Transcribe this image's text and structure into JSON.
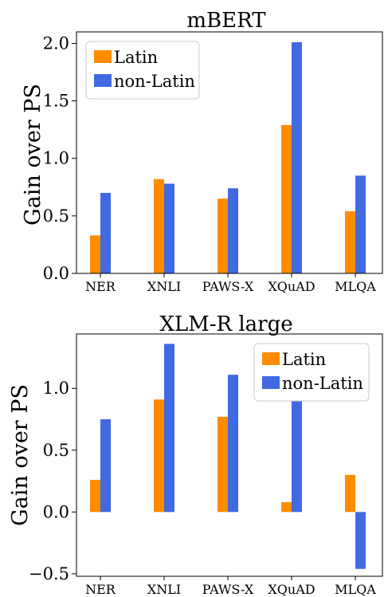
{
  "colors": {
    "latin": "#ff8c00",
    "non_latin": "#4169e1"
  },
  "chart_data": [
    {
      "type": "bar",
      "title": "mBERT",
      "ylabel": "Gain over PS",
      "xlabel": "",
      "categories": [
        "NER",
        "XNLI",
        "PAWS-X",
        "XQuAD",
        "MLQA"
      ],
      "series": [
        {
          "name": "Latin",
          "values": [
            0.33,
            0.82,
            0.65,
            1.29,
            0.54
          ]
        },
        {
          "name": "non-Latin",
          "values": [
            0.7,
            0.78,
            0.74,
            2.01,
            0.85
          ]
        }
      ],
      "ylim": [
        0,
        2.1
      ],
      "yticks": [
        0.0,
        0.5,
        1.0,
        1.5,
        2.0
      ],
      "ytick_labels": [
        "0.0",
        "0.5",
        "1.0",
        "1.5",
        "2.0"
      ],
      "legend_placement": "upper-left",
      "grid": false
    },
    {
      "type": "bar",
      "title": "XLM-R large",
      "ylabel": "Gain over PS",
      "xlabel": "",
      "categories": [
        "NER",
        "XNLI",
        "PAWS-X",
        "XQuAD",
        "MLQA"
      ],
      "series": [
        {
          "name": "Latin",
          "values": [
            0.26,
            0.91,
            0.77,
            0.08,
            0.3
          ]
        },
        {
          "name": "non-Latin",
          "values": [
            0.75,
            1.36,
            1.11,
            0.92,
            -0.46
          ]
        }
      ],
      "ylim": [
        -0.52,
        1.44
      ],
      "yticks": [
        -0.5,
        0.0,
        0.5,
        1.0
      ],
      "ytick_labels": [
        "−0.5",
        "0.0",
        "0.5",
        "1.0"
      ],
      "legend_placement": "upper-right",
      "grid": false
    }
  ]
}
